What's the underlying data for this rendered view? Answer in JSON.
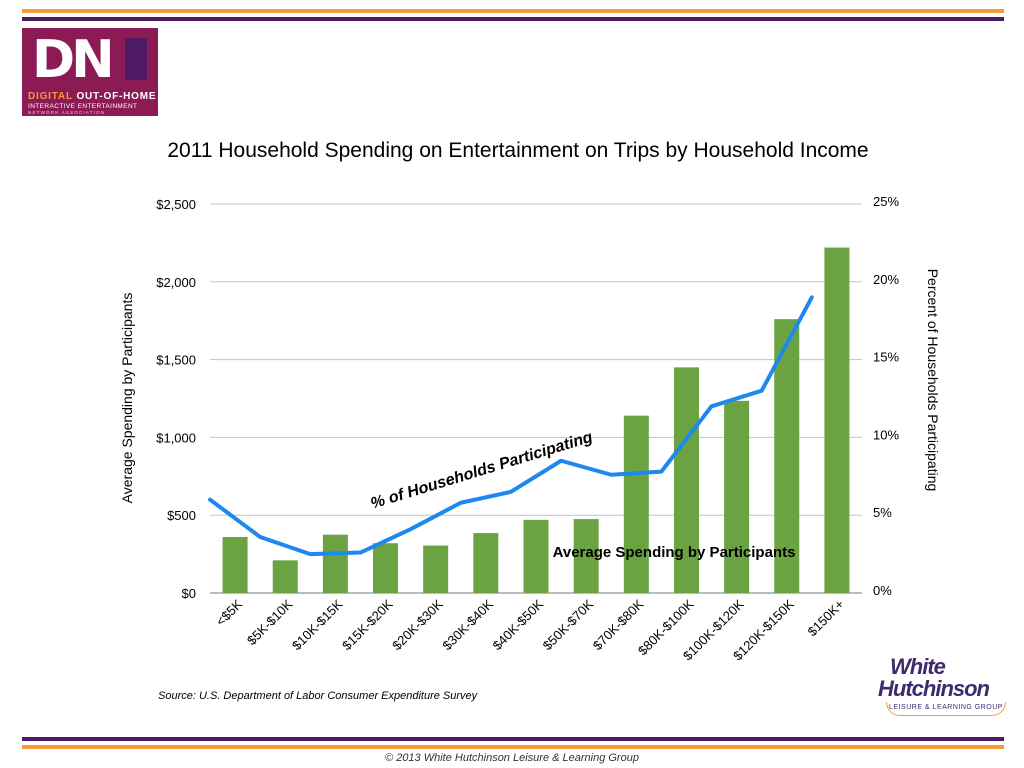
{
  "logo_dn": {
    "mark": "DN",
    "line1_orange": "DIGITAL",
    "line1_white": " OUT-OF-HOME",
    "line2": "INTERACTIVE ENTERTAINMENT",
    "line3": "NETWORK ASSOCIATION"
  },
  "logo_wh": {
    "line1": "White",
    "line2": "Hutchinson",
    "ribbon": "LEISURE & LEARNING GROUP"
  },
  "source": "Source: U.S. Department of Labor Consumer Expenditure Survey",
  "copyright": "© 2013 White Hutchinson Leisure & Learning Group",
  "colors": {
    "bar": "#6ba343",
    "line": "#1e88ee",
    "rule_orange": "#f39c3c",
    "rule_purple": "#4d1a63"
  },
  "chart_data": {
    "type": "bar",
    "title": "2011 Household Spending on Entertainment on Trips by Household Income",
    "categories": [
      "<$5K",
      "$5K-$10K",
      "$10K-$15K",
      "$15K-$20K",
      "$20K-$30K",
      "$30K-$40K",
      "$40K-$50K",
      "$50K-$70K",
      "$70K-$80K",
      "$80K-$100K",
      "$100K-$120K",
      "$120K-$150K",
      "$150K+"
    ],
    "ylabel": "Average Spending by Participants",
    "y2label": "Percent of Households Participating",
    "ylim": [
      0,
      2500
    ],
    "y2lim": [
      0,
      25
    ],
    "yticks": [
      "$0",
      "$500",
      "$1,000",
      "$1,500",
      "$2,000",
      "$2,500"
    ],
    "y2ticks": [
      "0%",
      "5%",
      "10%",
      "15%",
      "20%",
      "25%"
    ],
    "grid": true,
    "series": [
      {
        "name": "Average Spending by Participants",
        "type": "bar",
        "axis": "left",
        "values": [
          360,
          210,
          375,
          320,
          305,
          385,
          470,
          475,
          1140,
          1450,
          1235,
          1760,
          2220
        ]
      },
      {
        "name": "% of Households Participating",
        "type": "line",
        "axis": "right",
        "values": [
          6.0,
          3.6,
          2.5,
          2.6,
          4.1,
          5.8,
          6.5,
          8.5,
          7.6,
          7.8,
          12.0,
          13.0,
          19.0
        ]
      }
    ]
  }
}
